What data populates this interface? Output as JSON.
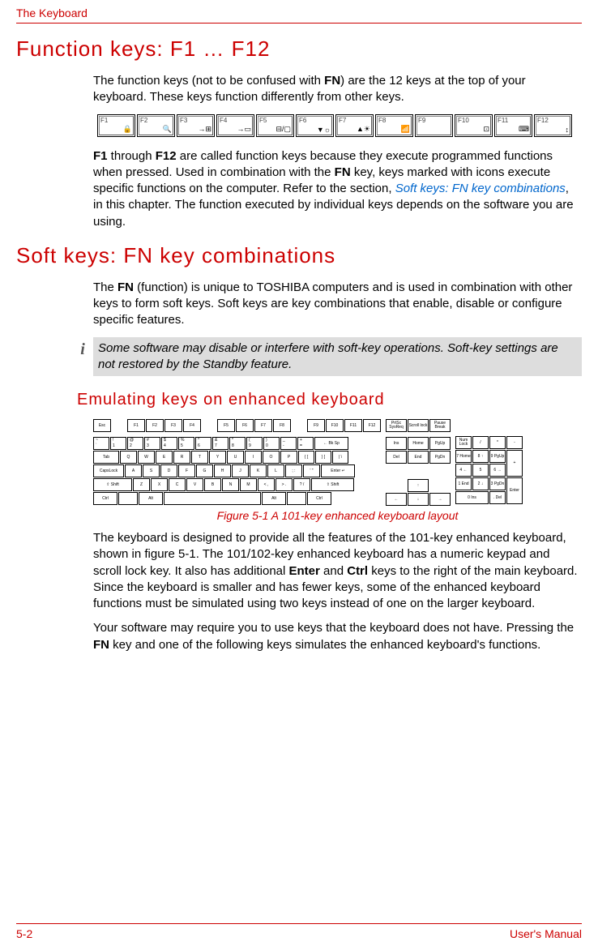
{
  "header": {
    "chapter_title": "The Keyboard"
  },
  "section1": {
    "title": "Function keys: F1 … F12",
    "para1_a": "The function keys (not to be confused with ",
    "para1_b": "FN",
    "para1_c": ") are the 12 keys at the top of your keyboard. These keys function differently from other keys.",
    "fkeys": [
      "F1",
      "F2",
      "F3",
      "F4",
      "F5",
      "F6",
      "F7",
      "F8",
      "F9",
      "F10",
      "F11",
      "F12"
    ],
    "fkey_icons": [
      "🔒",
      "🔍",
      "→⊞",
      "→▭",
      "⊟/▢",
      "▼☼",
      "▲☀",
      "📶",
      "",
      "⊡",
      "⌨",
      "↕"
    ],
    "para2_a": "F1",
    "para2_b": " through ",
    "para2_c": "F12",
    "para2_d": " are called function keys because they execute programmed functions when pressed. Used in combination with the ",
    "para2_e": "FN",
    "para2_f": " key, keys marked with icons execute specific functions on the computer. Refer to the section, ",
    "para2_link": "Soft keys: FN key combinations",
    "para2_g": ", in this chapter. The function executed by individual keys depends on the software you are using."
  },
  "section2": {
    "title": "Soft keys: FN key combinations",
    "para_a": "The ",
    "para_b": "FN",
    "para_c": " (function) is unique to TOSHIBA computers and is used in combination with other keys to form soft keys. Soft keys are key combinations that enable, disable or configure specific features.",
    "note": "Some software may disable or interfere with soft-key operations. Soft-key settings are not restored by the Standby feature.",
    "subsection_title": "Emulating keys on enhanced keyboard",
    "figure_caption": "Figure 5-1 A 101-key enhanced keyboard layout",
    "para3_a": "The keyboard is designed to provide all the features of the 101-key enhanced keyboard, shown in figure 5-1. The 101/102-key enhanced keyboard has a numeric keypad and scroll lock key. It also has additional ",
    "para3_b": "Enter",
    "para3_c": " and ",
    "para3_d": "Ctrl",
    "para3_e": " keys to the right of the main keyboard. Since the keyboard is smaller and has fewer keys, some of the enhanced keyboard functions must be simulated using two keys instead of one on the larger keyboard.",
    "para4_a": "Your software may require you to use keys that the keyboard does not have. Pressing the ",
    "para4_b": "FN",
    "para4_c": " key and one of the following keys simulates the enhanced keyboard's functions."
  },
  "keyboard": {
    "row_fn1": [
      "Esc"
    ],
    "row_fn2": [
      "F1",
      "F2",
      "F3",
      "F4"
    ],
    "row_fn3": [
      "F5",
      "F6",
      "F7",
      "F8"
    ],
    "row_fn4": [
      "F9",
      "F10",
      "F11",
      "F12"
    ],
    "row_fn5": [
      "PrtSc SysReq",
      "Scroll lock",
      "Pause Break"
    ],
    "row2_top": [
      "~",
      "!",
      "@",
      "#",
      "$",
      "%",
      "^",
      "&",
      "*",
      "(",
      ")",
      "_",
      "+"
    ],
    "row2_bot": [
      "`",
      "1",
      "2",
      "3",
      "4",
      "5",
      "6",
      "7",
      "8",
      "9",
      "0",
      "-",
      "="
    ],
    "row2_bksp": "← Bk Sp",
    "row3_tab": "Tab",
    "row3": [
      "Q",
      "W",
      "E",
      "R",
      "T",
      "Y",
      "U",
      "I",
      "O",
      "P",
      "{ [",
      "} ]",
      "| \\"
    ],
    "row4_caps": "CapsLock",
    "row4": [
      "A",
      "S",
      "D",
      "F",
      "G",
      "H",
      "J",
      "K",
      "L",
      "; :",
      "' \""
    ],
    "row4_enter": "Enter ↵",
    "row5_shift": "⇧ Shift",
    "row5": [
      "Z",
      "X",
      "C",
      "V",
      "B",
      "N",
      "M",
      "< ,",
      "> .",
      "? /"
    ],
    "row5_rshift": "⇧ Shift",
    "row6": [
      "Ctrl",
      "",
      "Alt",
      "",
      "Alt",
      "",
      "Ctrl"
    ],
    "nav1": [
      "Ins",
      "Home",
      "PgUp"
    ],
    "nav2": [
      "Del",
      "End",
      "PgDn"
    ],
    "arrows_up": "↑",
    "arrows": [
      "←",
      "↓",
      "→"
    ],
    "num_r1": [
      "Num Lock",
      "/",
      "*",
      "-"
    ],
    "num_r2": [
      "7 Home",
      "8 ↑",
      "9 PgUp"
    ],
    "num_plus": "+",
    "num_r3": [
      "4 ←",
      "5",
      "6 →"
    ],
    "num_r4": [
      "1 End",
      "2 ↓",
      "3 PgDn"
    ],
    "num_enter": "Enter",
    "num_r5": [
      "0 Ins",
      ". Del"
    ]
  },
  "footer": {
    "page": "5-2",
    "doc": "User's Manual"
  },
  "colors": {
    "accent": "#cc0000",
    "link": "#0066cc",
    "note_bg": "#dddddd",
    "text": "#000000"
  }
}
